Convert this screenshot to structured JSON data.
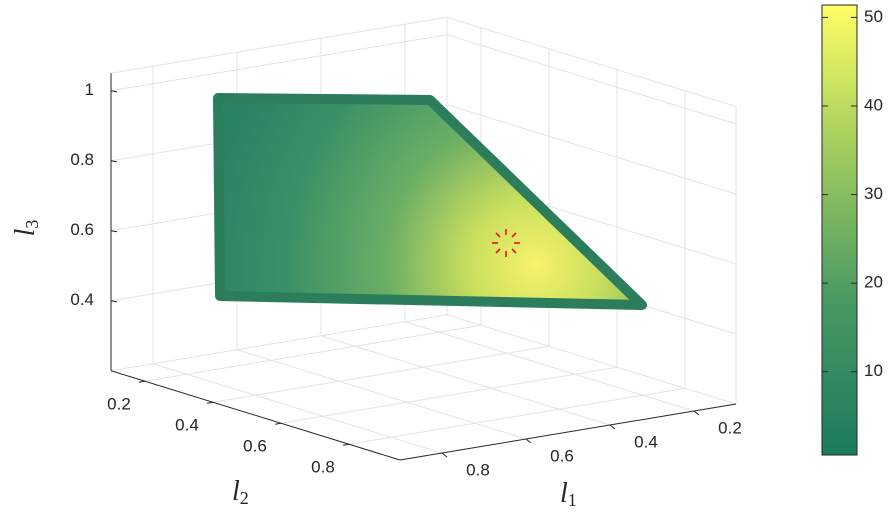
{
  "chart_data": {
    "type": "scatter3d",
    "xlabel": {
      "base": "l",
      "sub": "1"
    },
    "ylabel": {
      "base": "l",
      "sub": "2"
    },
    "zlabel": {
      "base": "l",
      "sub": "3"
    },
    "xlim": [
      0.1,
      0.9
    ],
    "xticks": [
      0.2,
      0.4,
      0.6,
      0.8
    ],
    "ylim": [
      0.1,
      0.95
    ],
    "yticks": [
      0.2,
      0.4,
      0.6,
      0.8
    ],
    "zlim": [
      0.2,
      1.05
    ],
    "zticks": [
      0.4,
      0.6,
      0.8,
      1
    ],
    "grid": true,
    "colorbar": {
      "clim": [
        0.6,
        51.4
      ],
      "ticks": [
        10,
        20,
        30,
        40,
        50
      ]
    }
  }
}
